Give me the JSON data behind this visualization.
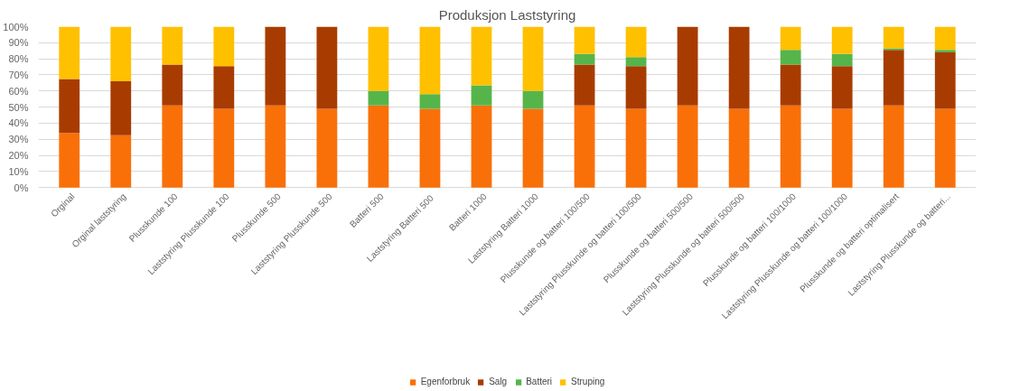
{
  "chart_data": {
    "type": "bar",
    "stacked": true,
    "title": "Produksjon Laststyring",
    "categories": [
      "Orginal",
      "Orginal laststyring",
      "Plusskunde 100",
      "Laststyring Plusskunde 100",
      "Plusskunde 500",
      "Laststyring Plusskunde 500",
      "Batteri 500",
      "Laststyring  Batteri 500",
      "Batteri 1000",
      "Laststyring Batteri 1000",
      "Plusskunde og batteri 100/500",
      "Laststyring Plusskunde og batteri 100/500",
      "Plusskunde og batteri 500/500",
      "Laststyring Plusskunde og batteri 500/500",
      "Plusskunde og batteri 100/1000",
      "Laststyring Plusskunde og batteri 100/1000",
      "Plusskunde og batteri optimalisert",
      "Laststyring Plusskunde og batteri..."
    ],
    "series": [
      {
        "name": "Egenforbruk",
        "color": "#f97009",
        "values": [
          34,
          32.5,
          51,
          49,
          51,
          49,
          51,
          49,
          51,
          49,
          51,
          49,
          51,
          49,
          51,
          49,
          51,
          49
        ]
      },
      {
        "name": "Salg",
        "color": "#a83c00",
        "values": [
          33.5,
          33.5,
          25.5,
          26.5,
          49,
          51,
          0,
          0,
          0,
          0,
          25.5,
          26.5,
          49,
          51,
          25.5,
          26.5,
          34.5,
          35
        ]
      },
      {
        "name": "Batteri",
        "color": "#56b54a",
        "values": [
          0,
          0,
          0,
          0,
          0,
          0,
          9,
          9,
          12.5,
          11,
          6.5,
          5.5,
          0,
          0,
          9,
          7.5,
          1,
          1.5
        ]
      },
      {
        "name": "Struping",
        "color": "#ffc000",
        "values": [
          32.5,
          34,
          23.5,
          24.5,
          0,
          0,
          40,
          42,
          36.5,
          40,
          17,
          19,
          0,
          0,
          14.5,
          17,
          13.5,
          14.5
        ]
      }
    ],
    "ylim": [
      0,
      100
    ],
    "yticks": [
      {
        "value": 0,
        "label": "0%"
      },
      {
        "value": 10,
        "label": "10%"
      },
      {
        "value": 20,
        "label": "20%"
      },
      {
        "value": 30,
        "label": "30%"
      },
      {
        "value": 40,
        "label": "40%"
      },
      {
        "value": 50,
        "label": "50%"
      },
      {
        "value": 60,
        "label": "60%"
      },
      {
        "value": 70,
        "label": "70%"
      },
      {
        "value": 80,
        "label": "80%"
      },
      {
        "value": 90,
        "label": "90%"
      },
      {
        "value": 100,
        "label": "100%"
      }
    ],
    "grid": "y",
    "legend": "bottom"
  }
}
